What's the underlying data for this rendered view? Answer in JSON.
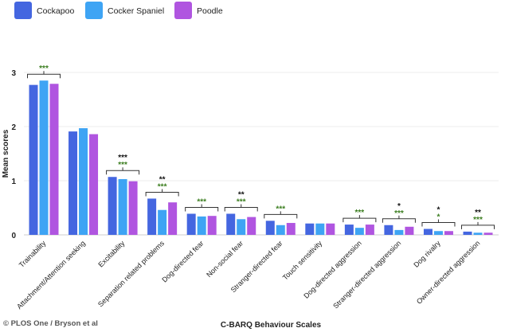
{
  "chart_data": {
    "type": "bar",
    "xlabel": "C-BARQ Behaviour Scales",
    "ylabel": "Mean scores",
    "ylim": [
      0,
      3
    ],
    "yticks": [
      0,
      1,
      2,
      3
    ],
    "grid": true,
    "legend_position": "top-left",
    "categories": [
      "Trainability",
      "Attachment/Attention seeking",
      "Excitability",
      "Separation related problems",
      "Dog-directed fear",
      "Non-social fear",
      "Stranger-directed fear",
      "Touch sensitivity",
      "Dog-directed aggression",
      "Stranger-directed aggression",
      "Dog rivalry",
      "Owner-directed aggression"
    ],
    "series": [
      {
        "name": "Cockapoo",
        "color": "#4466e0",
        "values": [
          2.77,
          1.91,
          1.07,
          0.67,
          0.39,
          0.39,
          0.26,
          0.21,
          0.19,
          0.18,
          0.11,
          0.06
        ]
      },
      {
        "name": "Cocker Spaniel",
        "color": "#3ea4f4",
        "values": [
          2.85,
          1.97,
          1.03,
          0.46,
          0.34,
          0.29,
          0.18,
          0.21,
          0.13,
          0.09,
          0.07,
          0.04
        ]
      },
      {
        "name": "Poodle",
        "color": "#b055e0",
        "values": [
          2.79,
          1.86,
          0.99,
          0.6,
          0.35,
          0.33,
          0.22,
          0.21,
          0.19,
          0.15,
          0.07,
          0.04
        ]
      }
    ],
    "significance": [
      {
        "black": "",
        "green": "***"
      },
      {
        "black": "",
        "green": ""
      },
      {
        "black": "***",
        "green": "***"
      },
      {
        "black": "**",
        "green": "***"
      },
      {
        "black": "",
        "green": "***"
      },
      {
        "black": "**",
        "green": "***"
      },
      {
        "black": "",
        "green": "***"
      },
      {
        "black": "",
        "green": ""
      },
      {
        "black": "",
        "green": "***"
      },
      {
        "black": "*",
        "green": "***"
      },
      {
        "black": "*",
        "green": "*"
      },
      {
        "black": "**",
        "green": "***"
      }
    ],
    "significance_colors": {
      "black": "#111111",
      "green": "#3a7d1e"
    }
  },
  "credit": "© PLOS One / Bryson et al"
}
